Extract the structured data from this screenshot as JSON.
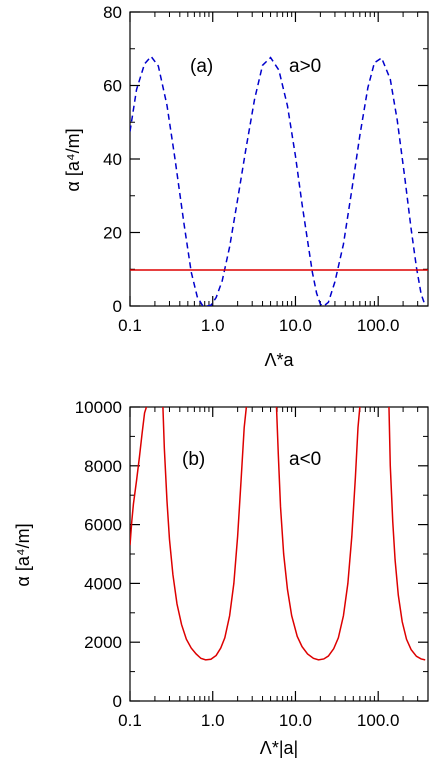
{
  "chart_data": [
    {
      "type": "line",
      "panel_label": "(a)",
      "annotation": "a>0",
      "xlabel": "Λ*a",
      "ylabel": "α [a⁴/m]",
      "x_scale": "log",
      "xlim": [
        0.1,
        400
      ],
      "ylim": [
        0,
        80
      ],
      "x_ticks": [
        0.1,
        1.0,
        10.0,
        100.0
      ],
      "x_tick_labels": [
        "0.1",
        "1.0",
        "10.0",
        "100.0"
      ],
      "y_ticks": [
        0,
        20,
        40,
        60,
        80
      ],
      "y_tick_labels": [
        "0",
        "20",
        "40",
        "60",
        "80"
      ],
      "series": [
        {
          "color": "#0000cc",
          "dash": "dashed",
          "x": [
            0.1,
            0.12,
            0.15,
            0.18,
            0.22,
            0.28,
            0.35,
            0.45,
            0.55,
            0.65,
            0.75,
            0.85,
            0.95,
            1.1,
            1.3,
            1.6,
            2.0,
            2.5,
            3.2,
            4.0,
            5.0,
            6.3,
            8.0,
            10.0,
            12.0,
            14.0,
            16.0,
            18.0,
            20.0,
            22.0,
            25.0,
            30.0,
            38.0,
            48.0,
            60.0,
            75.0,
            90.0,
            110.0,
            140.0,
            170.0,
            210.0,
            250.0,
            290.0,
            330.0,
            370.0
          ],
          "y": [
            47.5,
            58.9,
            65.9,
            67.9,
            65.3,
            54.6,
            40.0,
            22.3,
            9.2,
            2.5,
            0.2,
            0.0,
            0.2,
            2.3,
            6.8,
            16.1,
            29.0,
            42.3,
            56.2,
            65.5,
            67.6,
            64.2,
            54.5,
            40.8,
            27.8,
            17.8,
            9.2,
            3.5,
            0.5,
            0.0,
            1.0,
            6.6,
            16.8,
            31.6,
            46.4,
            59.4,
            66.2,
            67.5,
            61.7,
            50.5,
            34.8,
            21.0,
            10.5,
            3.3,
            0.1
          ]
        },
        {
          "color": "#dd0000",
          "dash": "solid",
          "x": [
            0.1,
            400
          ],
          "y": [
            9.8,
            9.8
          ]
        }
      ]
    },
    {
      "type": "line",
      "panel_label": "(b)",
      "annotation": "a<0",
      "xlabel": "Λ*|a|",
      "ylabel": "α [a⁴/m]",
      "x_scale": "log",
      "xlim": [
        0.1,
        400
      ],
      "ylim": [
        0,
        10000
      ],
      "x_ticks": [
        0.1,
        1.0,
        10.0,
        100.0
      ],
      "x_tick_labels": [
        "0.1",
        "1.0",
        "10.0",
        "100.0"
      ],
      "y_ticks": [
        0,
        2000,
        4000,
        6000,
        8000,
        10000
      ],
      "y_tick_labels": [
        "0",
        "2000",
        "4000",
        "6000",
        "8000",
        "10000"
      ],
      "series": [
        {
          "color": "#dd0000",
          "dash": "solid",
          "segments": [
            {
              "x": [
                0.1,
                0.105,
                0.11,
                0.12,
                0.13,
                0.14,
                0.15,
                0.158
              ],
              "y": [
                5300,
                6100,
                6700,
                7500,
                8300,
                9100,
                9800,
                10000
              ]
            },
            {
              "x": [
                0.25,
                0.26,
                0.28,
                0.3,
                0.33,
                0.37,
                0.42,
                0.48,
                0.55,
                0.63,
                0.72,
                0.82,
                0.95,
                1.1,
                1.25,
                1.4,
                1.6,
                1.8,
                2.0,
                2.2,
                2.4,
                2.55
              ],
              "y": [
                10000,
                8600,
                6800,
                5500,
                4300,
                3300,
                2600,
                2100,
                1800,
                1600,
                1450,
                1400,
                1420,
                1550,
                1800,
                2150,
                2900,
                4000,
                5600,
                7500,
                9300,
                10000
              ]
            },
            {
              "x": [
                5.9,
                6.2,
                6.6,
                7.2,
                8.0,
                9.0,
                10.5,
                12.0,
                14.0,
                16.5,
                19.0,
                22.0,
                25.0,
                29.0,
                33.0,
                38.0,
                43.0,
                48.0,
                53.0,
                57.0,
                60.0
              ],
              "y": [
                10000,
                8400,
                6600,
                5000,
                3800,
                2900,
                2200,
                1850,
                1600,
                1450,
                1400,
                1430,
                1530,
                1780,
                2150,
                2900,
                4000,
                5600,
                7600,
                9300,
                10000
              ]
            },
            {
              "x": [
                135.0,
                140.0,
                150.0,
                160.0,
                175.0,
                195.0,
                220.0,
                250.0,
                290.0,
                330.0,
                370.0
              ],
              "y": [
                10000,
                8000,
                6100,
                4800,
                3600,
                2700,
                2100,
                1750,
                1520,
                1430,
                1400
              ]
            }
          ]
        }
      ]
    }
  ]
}
